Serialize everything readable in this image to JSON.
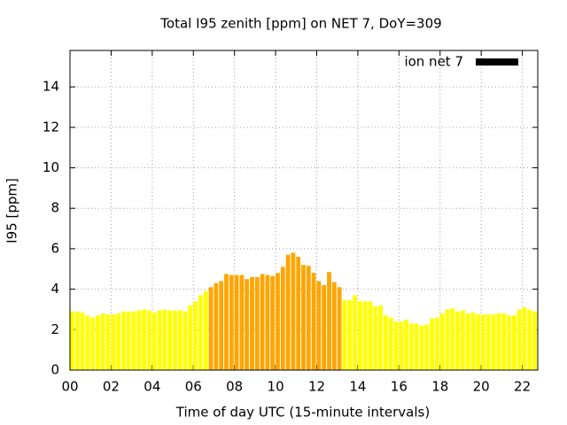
{
  "chart_data": {
    "type": "bar",
    "title": "Total I95 zenith [ppm] on NET 7, DoY=309",
    "x_label": "Time of day UTC (15-minute intervals)",
    "y_label": "I95 [ppm]",
    "x": [
      0,
      0.25,
      0.5,
      0.75,
      1,
      1.25,
      1.5,
      1.75,
      2,
      2.25,
      2.5,
      2.75,
      3,
      3.25,
      3.5,
      3.75,
      4,
      4.25,
      4.5,
      4.75,
      5,
      5.25,
      5.5,
      5.75,
      6,
      6.25,
      6.5,
      6.75,
      7,
      7.25,
      7.5,
      7.75,
      8,
      8.25,
      8.5,
      8.75,
      9,
      9.25,
      9.5,
      9.75,
      10,
      10.25,
      10.5,
      10.75,
      11,
      11.25,
      11.5,
      11.75,
      12,
      12.25,
      12.5,
      12.75,
      13,
      13.25,
      13.5,
      13.75,
      14,
      14.25,
      14.5,
      14.75,
      15,
      15.25,
      15.5,
      15.75,
      16,
      16.25,
      16.5,
      16.75,
      17,
      17.25,
      17.5,
      17.75,
      18,
      18.25,
      18.5,
      18.75,
      19,
      19.25,
      19.5,
      19.75,
      20,
      20.25,
      20.5,
      20.75,
      21,
      21.25,
      21.5,
      21.75,
      22,
      22.25,
      22.5
    ],
    "series": [
      {
        "name": "ion net 7",
        "color": "#000000",
        "values": [
          2.9,
          2.9,
          2.85,
          2.7,
          2.6,
          2.7,
          2.8,
          2.75,
          2.75,
          2.8,
          2.9,
          2.9,
          2.9,
          2.95,
          3.0,
          2.95,
          2.85,
          2.95,
          3.0,
          2.95,
          2.95,
          2.95,
          2.9,
          3.2,
          3.4,
          3.7,
          3.9,
          4.1,
          4.3,
          4.4,
          4.75,
          4.7,
          4.7,
          4.7,
          4.5,
          4.6,
          4.6,
          4.75,
          4.7,
          4.65,
          4.8,
          5.1,
          5.7,
          5.8,
          5.6,
          5.2,
          5.15,
          4.8,
          4.4,
          4.2,
          4.85,
          4.35,
          4.1,
          3.45,
          3.45,
          3.7,
          3.4,
          3.4,
          3.4,
          3.15,
          3.2,
          2.7,
          2.6,
          2.4,
          2.4,
          2.5,
          2.3,
          2.3,
          2.2,
          2.25,
          2.55,
          2.6,
          2.8,
          3.0,
          3.05,
          2.9,
          2.95,
          2.8,
          2.85,
          2.75,
          2.75,
          2.75,
          2.75,
          2.8,
          2.8,
          2.7,
          2.7,
          3.0,
          3.1,
          3.0,
          2.9
        ]
      }
    ],
    "bar_width": 0.25,
    "bar_color": "#ffff00",
    "high_color": "#ffa500",
    "high_threshold": 4,
    "xlim": [
      0,
      22.75
    ],
    "xticks": [
      {
        "value": 0,
        "label": "00"
      },
      {
        "value": 2,
        "label": "02"
      },
      {
        "value": 4,
        "label": "04"
      },
      {
        "value": 6,
        "label": "06"
      },
      {
        "value": 8,
        "label": "08"
      },
      {
        "value": 10,
        "label": "10"
      },
      {
        "value": 12,
        "label": "12"
      },
      {
        "value": 14,
        "label": "14"
      },
      {
        "value": 16,
        "label": "16"
      },
      {
        "value": 18,
        "label": "18"
      },
      {
        "value": 20,
        "label": "20"
      },
      {
        "value": 22,
        "label": "22"
      }
    ],
    "ylim": [
      0,
      15.8
    ],
    "yticks": [
      0,
      2,
      4,
      6,
      8,
      10,
      12,
      14
    ],
    "grid": true,
    "legend": "top-right"
  }
}
